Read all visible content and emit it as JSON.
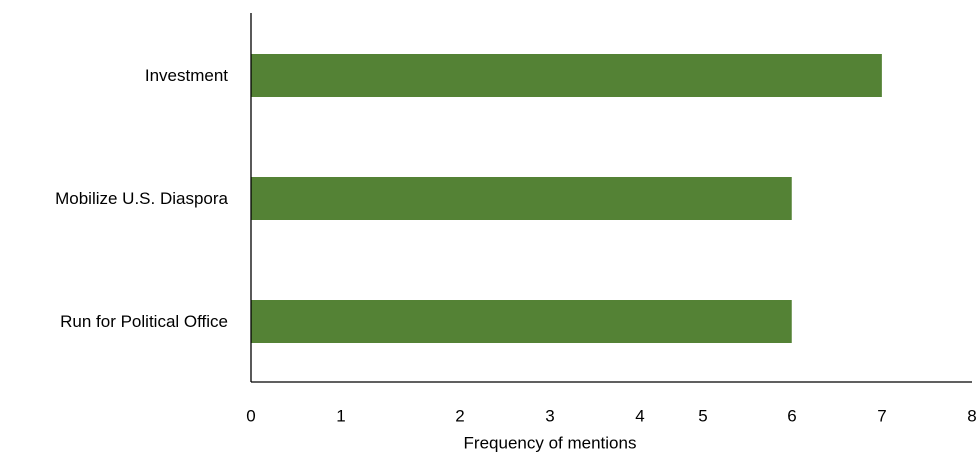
{
  "chart_data": {
    "type": "bar",
    "orientation": "horizontal",
    "categories": [
      "Investment",
      "Mobilize U.S. Diaspora",
      "Run for Political Office"
    ],
    "values": [
      7,
      6,
      6
    ],
    "xlabel": "Frequency of mentions",
    "ylabel": "",
    "xlim": [
      0,
      8
    ],
    "xticks": [
      0,
      1,
      2,
      3,
      4,
      5,
      6,
      7,
      8
    ],
    "grid": false,
    "bar_color": "#548235",
    "axis_color": "#000000",
    "text_color": "#000000"
  }
}
